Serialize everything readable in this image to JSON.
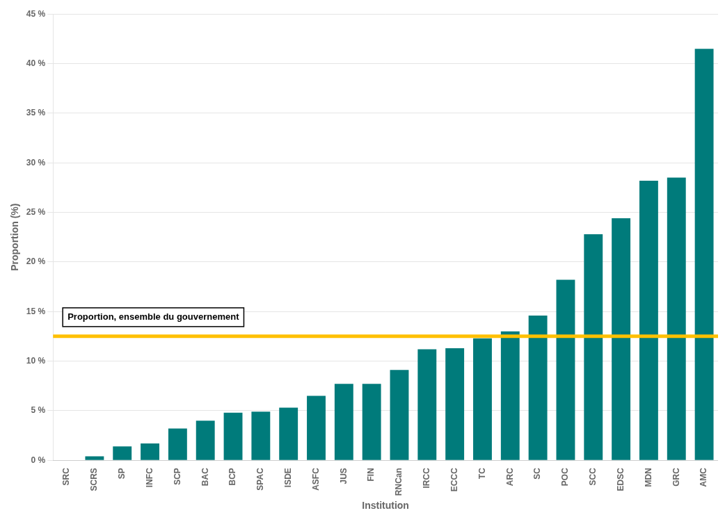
{
  "chart_data": {
    "type": "bar",
    "categories": [
      "SRC",
      "SCRS",
      "SP",
      "INFC",
      "SCP",
      "BAC",
      "BCP",
      "SPAC",
      "ISDE",
      "ASFC",
      "JUS",
      "FIN",
      "RNCan",
      "IRCC",
      "ECCC",
      "TC",
      "ARC",
      "SC",
      "POC",
      "SCC",
      "EDSC",
      "MDN",
      "GRC",
      "AMC"
    ],
    "values": [
      0.0,
      0.4,
      1.4,
      1.7,
      3.2,
      4.0,
      4.8,
      4.9,
      5.3,
      6.5,
      7.7,
      7.7,
      9.1,
      11.2,
      11.3,
      12.3,
      13.0,
      14.6,
      18.2,
      22.8,
      24.4,
      28.2,
      28.5,
      41.5
    ],
    "color": "#007b7b",
    "xlabel": "Institution",
    "ylabel": "Proportion (%)",
    "ylim": [
      0,
      45
    ],
    "yticks": [
      {
        "value": 0,
        "label": "0 %"
      },
      {
        "value": 5,
        "label": "5 %"
      },
      {
        "value": 10,
        "label": "10 %"
      },
      {
        "value": 15,
        "label": "15 %"
      },
      {
        "value": 20,
        "label": "20 %"
      },
      {
        "value": 25,
        "label": "25 %"
      },
      {
        "value": 30,
        "label": "30 %"
      },
      {
        "value": 35,
        "label": "35 %"
      },
      {
        "value": 40,
        "label": "40 %"
      },
      {
        "value": 45,
        "label": "45 %"
      }
    ],
    "grid": true,
    "annotations": [
      {
        "y": 12.5,
        "text": "Proportion, ensemble du gouvernement",
        "color": "#FFC000"
      }
    ]
  }
}
